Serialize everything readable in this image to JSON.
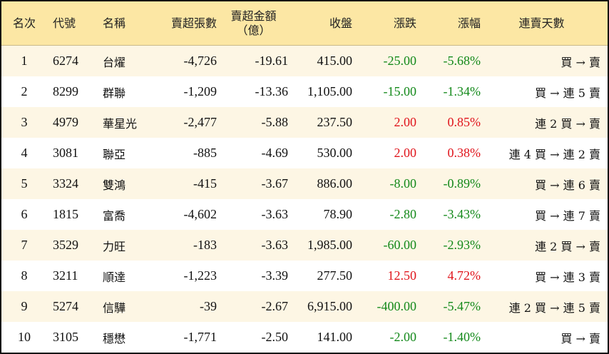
{
  "table": {
    "headers": [
      "名次",
      "代號",
      "名稱",
      "賣超張數",
      [
        "賣超金額",
        "（億）"
      ],
      "收盤",
      "漲跌",
      "漲幅",
      "連賣天數"
    ],
    "rows": [
      [
        "1",
        "6274",
        "台燿",
        "-4,726",
        "-19.61",
        "415.00",
        "-25.00",
        "-5.68%",
        "買 → 賣"
      ],
      [
        "2",
        "8299",
        "群聯",
        "-1,209",
        "-13.36",
        "1,105.00",
        "-15.00",
        "-1.34%",
        "買 → 連 5 賣"
      ],
      [
        "3",
        "4979",
        "華星光",
        "-2,477",
        "-5.88",
        "237.50",
        "2.00",
        "0.85%",
        "連 2 買 → 賣"
      ],
      [
        "4",
        "3081",
        "聯亞",
        "-885",
        "-4.69",
        "530.00",
        "2.00",
        "0.38%",
        "連 4 買 → 連 2 賣"
      ],
      [
        "5",
        "3324",
        "雙鴻",
        "-415",
        "-3.67",
        "886.00",
        "-8.00",
        "-0.89%",
        "買 → 連 6 賣"
      ],
      [
        "6",
        "1815",
        "富喬",
        "-4,602",
        "-3.63",
        "78.90",
        "-2.80",
        "-3.43%",
        "買 → 連 7 賣"
      ],
      [
        "7",
        "3529",
        "力旺",
        "-183",
        "-3.63",
        "1,985.00",
        "-60.00",
        "-2.93%",
        "連 2 買 → 賣"
      ],
      [
        "8",
        "3211",
        "順達",
        "-1,223",
        "-3.39",
        "277.50",
        "12.50",
        "4.72%",
        "買 → 連 3 賣"
      ],
      [
        "9",
        "5274",
        "信驊",
        "-39",
        "-2.67",
        "6,915.00",
        "-400.00",
        "-5.47%",
        "連 2 買 → 連 5 賣"
      ],
      [
        "10",
        "3105",
        "穩懋",
        "-1,771",
        "-2.50",
        "141.00",
        "-2.00",
        "-1.40%",
        "買 → 賣"
      ]
    ]
  }
}
